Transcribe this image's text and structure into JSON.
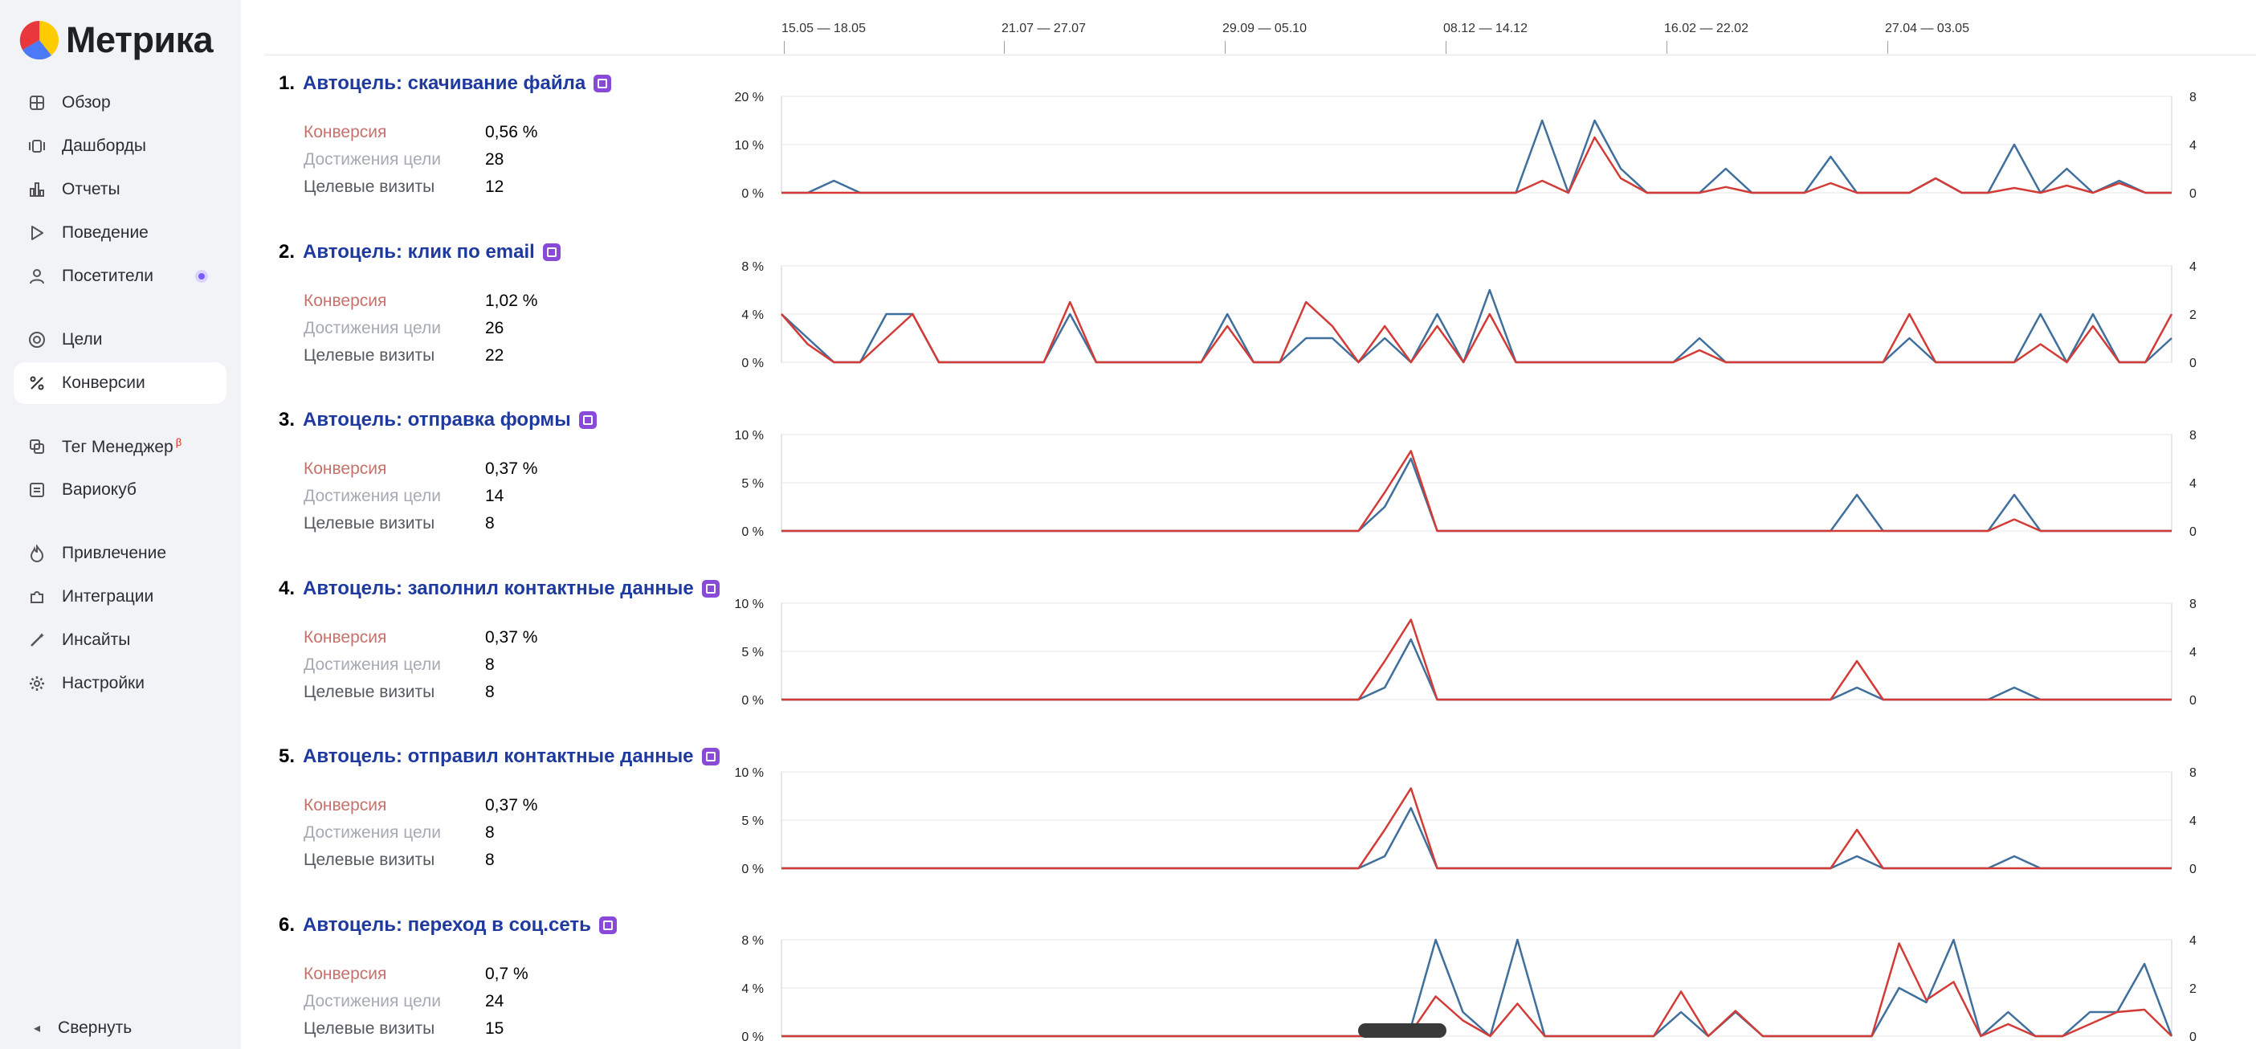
{
  "app": {
    "name": "Метрика"
  },
  "sidebar": {
    "items": [
      {
        "label": "Обзор",
        "icon": "grid-icon"
      },
      {
        "label": "Дашборды",
        "icon": "dashboards-icon"
      },
      {
        "label": "Отчеты",
        "icon": "bar-chart-icon"
      },
      {
        "label": "Поведение",
        "icon": "play-icon"
      },
      {
        "label": "Посетители",
        "icon": "user-icon",
        "badge": true
      },
      {
        "label": "Цели",
        "icon": "target-icon"
      },
      {
        "label": "Конверсии",
        "icon": "percent-icon",
        "active": true
      },
      {
        "label": "Тег Менеджер",
        "icon": "tag-manager-icon",
        "sup": "β"
      },
      {
        "label": "Вариокуб",
        "icon": "variocube-icon"
      },
      {
        "label": "Привлечение",
        "icon": "flame-icon"
      },
      {
        "label": "Интеграции",
        "icon": "puzzle-icon"
      },
      {
        "label": "Инсайты",
        "icon": "magic-wand-icon"
      },
      {
        "label": "Настройки",
        "icon": "gear-icon"
      }
    ],
    "collapse_label": "Свернуть",
    "collapse_icon": "chevron-left-icon"
  },
  "timeline": {
    "labels": [
      "15.05 — 18.05",
      "21.07 — 27.07",
      "29.09 — 05.10",
      "08.12 — 14.12",
      "16.02 — 22.02",
      "27.04 — 03.05"
    ]
  },
  "metric_labels": {
    "conversion": "Конверсия",
    "achievements": "Достижения цели",
    "visits": "Целевые визиты"
  },
  "colors": {
    "conversion_line": "#d33b36",
    "visits_line": "#3f6f9c",
    "goal_title": "#1e3a9f",
    "conversion_label": "#c6716c",
    "achievements_label": "#a6abb3",
    "visits_label": "#555a60",
    "goal_icon": "#8a4ad8"
  },
  "goals": [
    {
      "num": "1.",
      "name": "Автоцель: скачивание файла",
      "icon": "download-icon",
      "conversion": "0,56 %",
      "achievements": "28",
      "visits": "12"
    },
    {
      "num": "2.",
      "name": "Автоцель: клик по email",
      "icon": "email-icon",
      "conversion": "1,02 %",
      "achievements": "26",
      "visits": "22"
    },
    {
      "num": "3.",
      "name": "Автоцель: отправка формы",
      "icon": "form-icon",
      "conversion": "0,37 %",
      "achievements": "14",
      "visits": "8"
    },
    {
      "num": "4.",
      "name": "Автоцель: заполнил контактные данные",
      "icon": "contact-card-icon",
      "conversion": "0,37 %",
      "achievements": "8",
      "visits": "8"
    },
    {
      "num": "5.",
      "name": "Автоцель: отправил контактные данные",
      "icon": "contact-card-icon",
      "conversion": "0,37 %",
      "achievements": "8",
      "visits": "8"
    },
    {
      "num": "6.",
      "name": "Автоцель: переход в соц.сеть",
      "icon": "social-icon",
      "conversion": "0,7 %",
      "achievements": "24",
      "visits": "15"
    }
  ],
  "chart_data": [
    {
      "type": "line",
      "left_ticks": [
        "20 %",
        "10 %",
        "0 %"
      ],
      "right_ticks": [
        "8",
        "4",
        "0"
      ],
      "ylim_left": [
        0,
        20
      ],
      "ylim_right": [
        0,
        8
      ],
      "series": [
        {
          "values": [
            0,
            0,
            0,
            0,
            0,
            0,
            0,
            0,
            0,
            0,
            0,
            0,
            0,
            0,
            0,
            0,
            0,
            0,
            0,
            0,
            0,
            0,
            0,
            0,
            0,
            0,
            0,
            0,
            0,
            2.5,
            0,
            11.5,
            3,
            0,
            0,
            0,
            1.2,
            0,
            0,
            0,
            2,
            0,
            0,
            0,
            3,
            0,
            0,
            1,
            0,
            1.5,
            0,
            2,
            0,
            0
          ]
        },
        {
          "values": [
            0,
            0,
            1,
            0,
            0,
            0,
            0,
            0,
            0,
            0,
            0,
            0,
            0,
            0,
            0,
            0,
            0,
            0,
            0,
            0,
            0,
            0,
            0,
            0,
            0,
            0,
            0,
            0,
            0,
            6,
            0,
            6,
            2,
            0,
            0,
            0,
            2,
            0,
            0,
            0,
            3,
            0,
            0,
            0,
            1.2,
            0,
            0,
            4,
            0,
            2,
            0,
            1,
            0,
            0
          ]
        }
      ]
    },
    {
      "type": "line",
      "left_ticks": [
        "8 %",
        "4 %",
        "0 %"
      ],
      "right_ticks": [
        "4",
        "2",
        "0"
      ],
      "ylim_left": [
        0,
        8
      ],
      "ylim_right": [
        0,
        4
      ],
      "series": [
        {
          "values": [
            4,
            1.5,
            0,
            0,
            2,
            4,
            0,
            0,
            0,
            0,
            0,
            5,
            0,
            0,
            0,
            0,
            0,
            3,
            0,
            0,
            5,
            3,
            0,
            3,
            0,
            3,
            0,
            4,
            0,
            0,
            0,
            0,
            0,
            0,
            0,
            1,
            0,
            0,
            0,
            0,
            0,
            0,
            0,
            4,
            0,
            0,
            0,
            0,
            1.5,
            0,
            3,
            0,
            0,
            4
          ]
        },
        {
          "values": [
            2,
            1,
            0,
            0,
            2,
            2,
            0,
            0,
            0,
            0,
            0,
            2,
            0,
            0,
            0,
            0,
            0,
            2,
            0,
            0,
            1,
            1,
            0,
            1,
            0,
            2,
            0,
            3,
            0,
            0,
            0,
            0,
            0,
            0,
            0,
            1,
            0,
            0,
            0,
            0,
            0,
            0,
            0,
            1,
            0,
            0,
            0,
            0,
            2,
            0,
            2,
            0,
            0,
            1
          ]
        }
      ]
    },
    {
      "type": "line",
      "left_ticks": [
        "10 %",
        "5 %",
        "0 %"
      ],
      "right_ticks": [
        "8",
        "4",
        "0"
      ],
      "ylim_left": [
        0,
        10
      ],
      "ylim_right": [
        0,
        8
      ],
      "series": [
        {
          "values": [
            0,
            0,
            0,
            0,
            0,
            0,
            0,
            0,
            0,
            0,
            0,
            0,
            0,
            0,
            0,
            0,
            0,
            0,
            0,
            0,
            0,
            0,
            0,
            4,
            8.3,
            0,
            0,
            0,
            0,
            0,
            0,
            0,
            0,
            0,
            0,
            0,
            0,
            0,
            0,
            0,
            0,
            0,
            0,
            0,
            0,
            0,
            0,
            1.2,
            0,
            0,
            0,
            0,
            0,
            0
          ]
        },
        {
          "values": [
            0,
            0,
            0,
            0,
            0,
            0,
            0,
            0,
            0,
            0,
            0,
            0,
            0,
            0,
            0,
            0,
            0,
            0,
            0,
            0,
            0,
            0,
            0,
            2,
            6,
            0,
            0,
            0,
            0,
            0,
            0,
            0,
            0,
            0,
            0,
            0,
            0,
            0,
            0,
            0,
            0,
            3,
            0,
            0,
            0,
            0,
            0,
            3,
            0,
            0,
            0,
            0,
            0,
            0
          ]
        }
      ]
    },
    {
      "type": "line",
      "left_ticks": [
        "10 %",
        "5 %",
        "0 %"
      ],
      "right_ticks": [
        "8",
        "4",
        "0"
      ],
      "ylim_left": [
        0,
        10
      ],
      "ylim_right": [
        0,
        8
      ],
      "series": [
        {
          "values": [
            0,
            0,
            0,
            0,
            0,
            0,
            0,
            0,
            0,
            0,
            0,
            0,
            0,
            0,
            0,
            0,
            0,
            0,
            0,
            0,
            0,
            0,
            0,
            4,
            8.3,
            0,
            0,
            0,
            0,
            0,
            0,
            0,
            0,
            0,
            0,
            0,
            0,
            0,
            0,
            0,
            0,
            4,
            0,
            0,
            0,
            0,
            0,
            0,
            0,
            0,
            0,
            0,
            0,
            0
          ]
        },
        {
          "values": [
            0,
            0,
            0,
            0,
            0,
            0,
            0,
            0,
            0,
            0,
            0,
            0,
            0,
            0,
            0,
            0,
            0,
            0,
            0,
            0,
            0,
            0,
            0,
            1,
            5,
            0,
            0,
            0,
            0,
            0,
            0,
            0,
            0,
            0,
            0,
            0,
            0,
            0,
            0,
            0,
            0,
            1,
            0,
            0,
            0,
            0,
            0,
            1,
            0,
            0,
            0,
            0,
            0,
            0
          ]
        }
      ]
    },
    {
      "type": "line",
      "left_ticks": [
        "10 %",
        "5 %",
        "0 %"
      ],
      "right_ticks": [
        "8",
        "4",
        "0"
      ],
      "ylim_left": [
        0,
        10
      ],
      "ylim_right": [
        0,
        8
      ],
      "series": [
        {
          "values": [
            0,
            0,
            0,
            0,
            0,
            0,
            0,
            0,
            0,
            0,
            0,
            0,
            0,
            0,
            0,
            0,
            0,
            0,
            0,
            0,
            0,
            0,
            0,
            4,
            8.3,
            0,
            0,
            0,
            0,
            0,
            0,
            0,
            0,
            0,
            0,
            0,
            0,
            0,
            0,
            0,
            0,
            4,
            0,
            0,
            0,
            0,
            0,
            0,
            0,
            0,
            0,
            0,
            0,
            0
          ]
        },
        {
          "values": [
            0,
            0,
            0,
            0,
            0,
            0,
            0,
            0,
            0,
            0,
            0,
            0,
            0,
            0,
            0,
            0,
            0,
            0,
            0,
            0,
            0,
            0,
            0,
            1,
            5,
            0,
            0,
            0,
            0,
            0,
            0,
            0,
            0,
            0,
            0,
            0,
            0,
            0,
            0,
            0,
            0,
            1,
            0,
            0,
            0,
            0,
            0,
            1,
            0,
            0,
            0,
            0,
            0,
            0
          ]
        }
      ]
    },
    {
      "type": "line",
      "left_ticks": [
        "8 %",
        "4 %",
        "0 %"
      ],
      "right_ticks": [
        "4",
        "2",
        "0"
      ],
      "ylim_left": [
        0,
        8
      ],
      "ylim_right": [
        0,
        4
      ],
      "series": [
        {
          "values": [
            0,
            0,
            0,
            0,
            0,
            0,
            0,
            0,
            0,
            0,
            0,
            0,
            0,
            0,
            0,
            0,
            0,
            0,
            0,
            0,
            0,
            0,
            0,
            0,
            3.3,
            1.3,
            0,
            2.7,
            0,
            0,
            0,
            0,
            0,
            3.7,
            0,
            2.1,
            0,
            0,
            0,
            0,
            0,
            7.7,
            3,
            4.5,
            0,
            1,
            0,
            0,
            1,
            2,
            2.2,
            0
          ]
        },
        {
          "values": [
            0,
            0,
            0,
            0,
            0,
            0,
            0,
            0,
            0,
            0,
            0,
            0,
            0,
            0,
            0,
            0,
            0,
            0,
            0,
            0,
            0,
            0,
            0,
            0,
            4,
            1,
            0,
            4,
            0,
            0,
            0,
            0,
            0,
            1,
            0,
            1,
            0,
            0,
            0,
            0,
            0,
            2,
            1.4,
            4,
            0,
            1,
            0,
            0,
            1,
            1,
            3,
            0
          ]
        }
      ]
    }
  ]
}
